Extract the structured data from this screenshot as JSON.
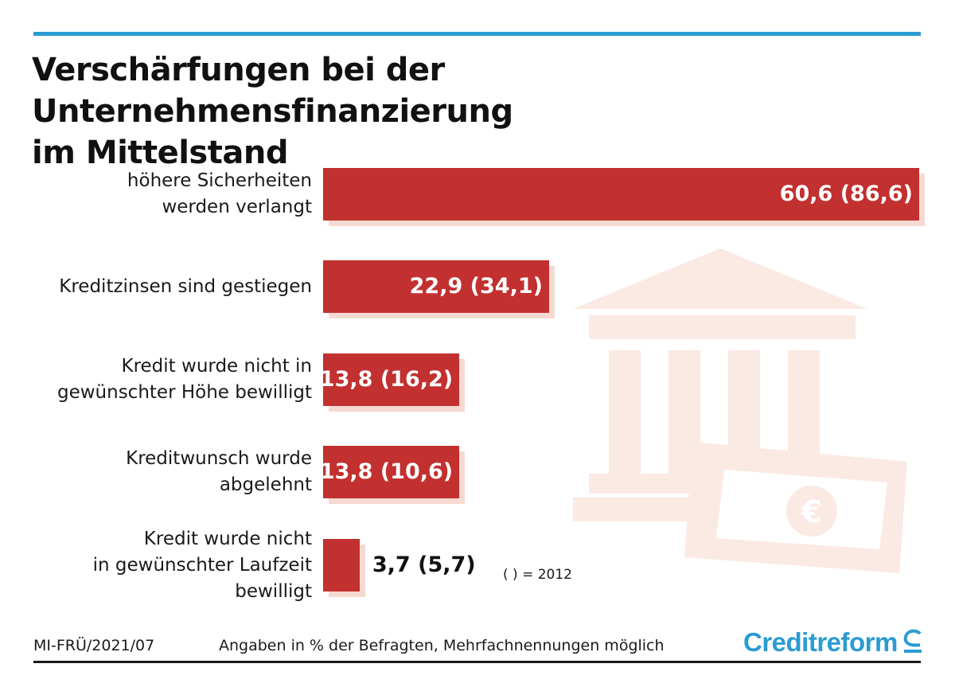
{
  "title_lines": [
    "Verschärfungen bei der Unternehmensfinanzierung",
    "im Mittelstand"
  ],
  "chart_data": {
    "type": "bar",
    "orientation": "horizontal",
    "categories": [
      "höhere Sicherheiten werden verlangt",
      "Kreditzinsen sind gestiegen",
      "Kredit wurde nicht in gewünschter Höhe bewilligt",
      "Kreditwunsch wurde abgelehnt",
      "Kredit wurde nicht in gewünschter Laufzeit bewilligt"
    ],
    "values": [
      60.6,
      22.9,
      13.8,
      13.8,
      3.7
    ],
    "values_2012": [
      86.6,
      34.1,
      16.2,
      10.6,
      5.7
    ],
    "value_labels": [
      "60,6 (86,6)",
      "22,9 (34,1)",
      "13,8 (16,2)",
      "13,8 (10,6)",
      "3,7 (5,7)"
    ],
    "label_lines": [
      [
        "höhere Sicherheiten",
        "werden verlangt"
      ],
      [
        "Kreditzinsen sind gestiegen"
      ],
      [
        "Kredit wurde nicht in",
        "gewünschter Höhe bewilligt"
      ],
      [
        "Kreditwunsch wurde",
        "abgelehnt"
      ],
      [
        "Kredit wurde nicht",
        "in gewünschter Laufzeit",
        "bewilligt"
      ]
    ],
    "legend_note": "( ) = 2012",
    "grid": false,
    "bar_color": "#c2302f"
  },
  "footer": {
    "source_code": "MI-FRÜ/2021/07",
    "note": "Angaben in % der Befragten,  Mehrfachnennungen möglich",
    "brand": "Creditreform"
  },
  "colors": {
    "accent": "#2b9bd3",
    "bar": "#c2302f",
    "bar_shadow": "#f6d9d1",
    "watermark": "#fbe9e3"
  },
  "watermark_icons": [
    "bank-building-icon",
    "euro-banknote-icon"
  ]
}
